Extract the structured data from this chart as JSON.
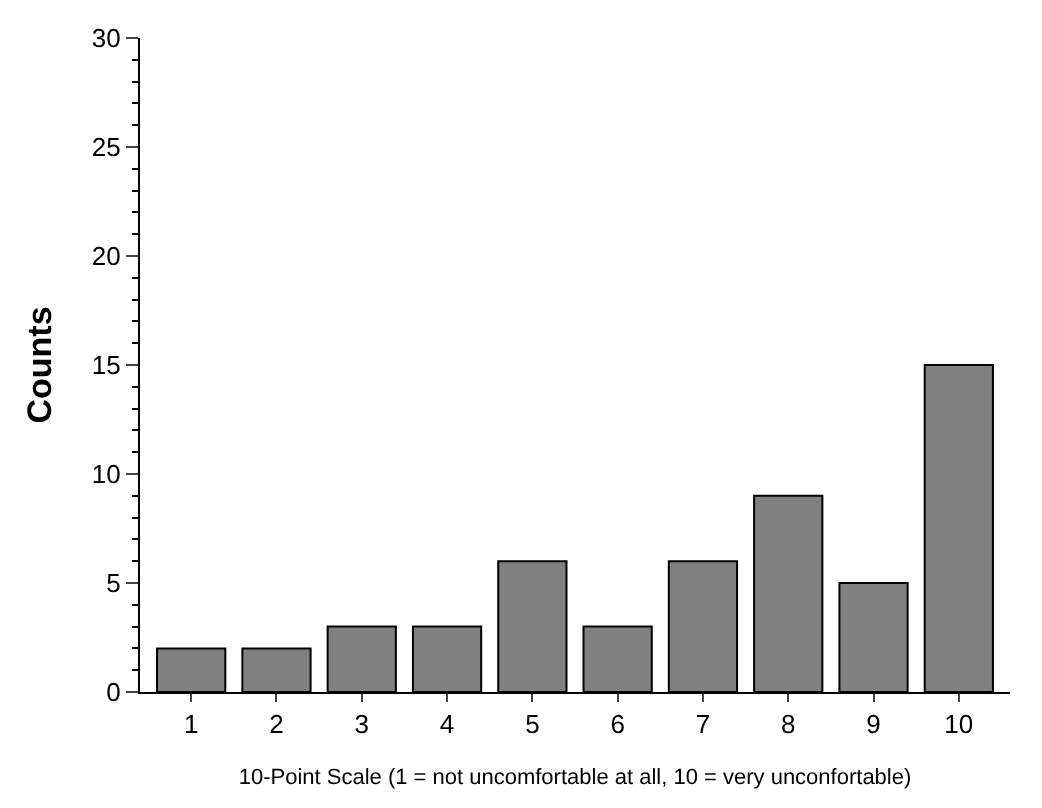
{
  "chart_data": {
    "type": "bar",
    "xlabel": "10-Point Scale (1 = not uncomfortable at all, 10 = very unconfortable)",
    "ylabel": "Counts",
    "categories": [
      "1",
      "2",
      "3",
      "4",
      "5",
      "6",
      "7",
      "8",
      "9",
      "10"
    ],
    "values": [
      2,
      2,
      3,
      3,
      6,
      3,
      6,
      9,
      5,
      15
    ],
    "color": "#808080",
    "ylim": [
      0,
      30
    ],
    "yticks": [
      0,
      5,
      10,
      15,
      20,
      25,
      30
    ],
    "legend": false
  }
}
